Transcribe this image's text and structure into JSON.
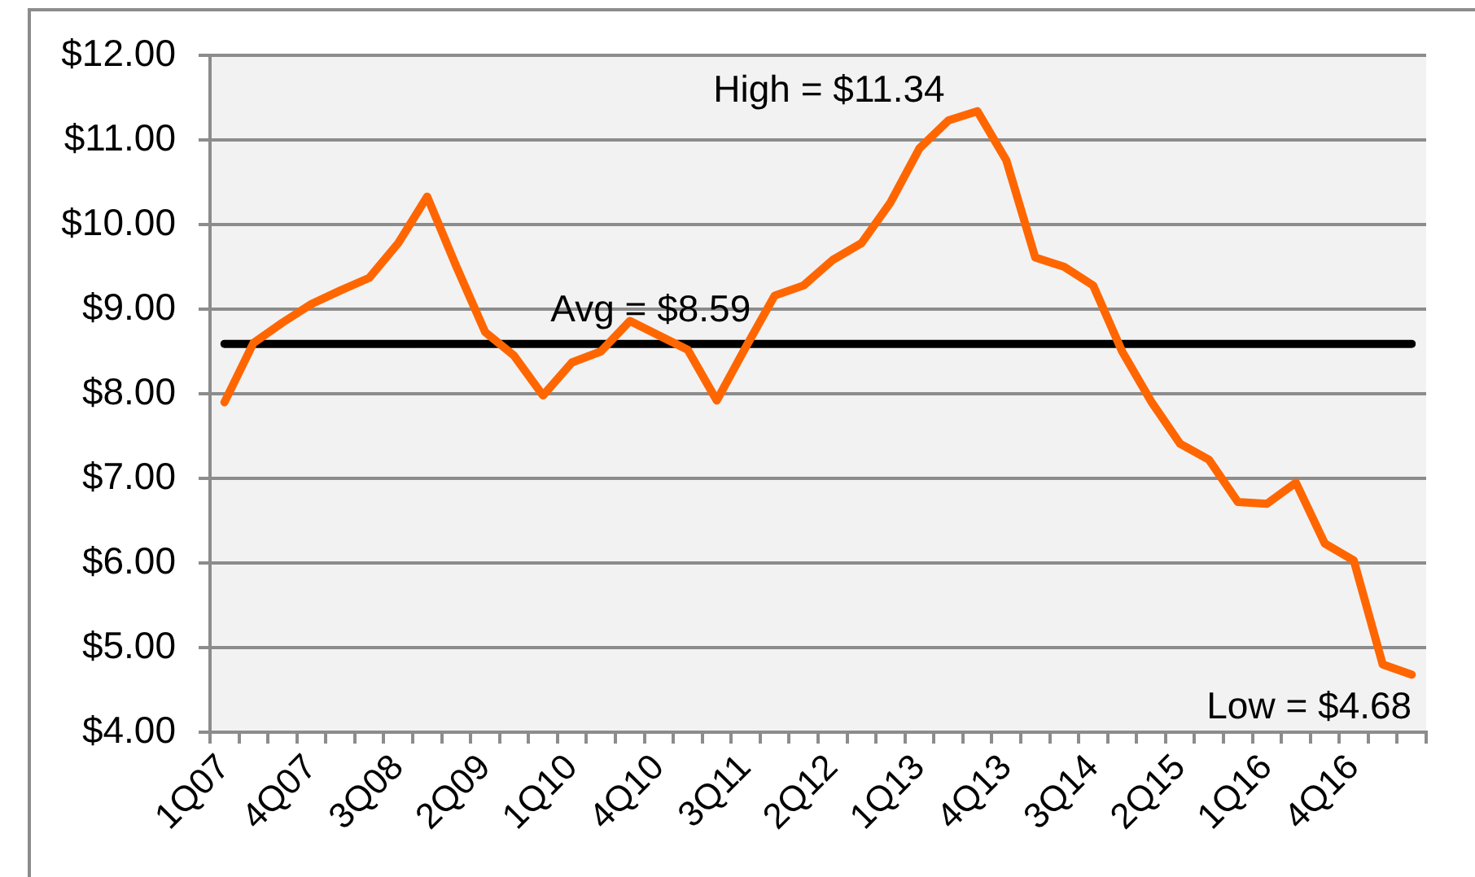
{
  "chart_data": {
    "type": "line",
    "categories": [
      "1Q07",
      null,
      null,
      "4Q07",
      null,
      null,
      "3Q08",
      null,
      null,
      "2Q09",
      null,
      null,
      "1Q10",
      null,
      null,
      "4Q10",
      null,
      null,
      "3Q11",
      null,
      null,
      "2Q12",
      null,
      null,
      "1Q13",
      null,
      null,
      "4Q13",
      null,
      null,
      "3Q14",
      null,
      null,
      "2Q15",
      null,
      null,
      "1Q16",
      null,
      null,
      "4Q16",
      null,
      null
    ],
    "series": [
      {
        "color": "#ff6600",
        "values": [
          7.9,
          8.6,
          8.84,
          9.06,
          9.22,
          9.37,
          9.78,
          10.33,
          9.51,
          8.73,
          8.45,
          7.98,
          8.37,
          8.5,
          8.86,
          8.69,
          8.52,
          7.92,
          8.55,
          9.16,
          9.28,
          9.58,
          9.78,
          10.26,
          10.9,
          11.23,
          11.34,
          10.76,
          9.61,
          9.5,
          9.28,
          8.5,
          7.91,
          7.41,
          7.22,
          6.72,
          6.7,
          6.95,
          6.23,
          6.03,
          4.8,
          4.68
        ]
      }
    ],
    "ylim": [
      4,
      12
    ],
    "yticks": [
      {
        "value": 4,
        "label": "$4.00"
      },
      {
        "value": 5,
        "label": "$5.00"
      },
      {
        "value": 6,
        "label": "$6.00"
      },
      {
        "value": 7,
        "label": "$7.00"
      },
      {
        "value": 8,
        "label": "$8.00"
      },
      {
        "value": 9,
        "label": "$9.00"
      },
      {
        "value": 10,
        "label": "$10.00"
      },
      {
        "value": 11,
        "label": "$11.00"
      },
      {
        "value": 12,
        "label": "$12.00"
      }
    ],
    "grid": "y",
    "ref_lines": [
      {
        "axis": "y",
        "value": 8.59,
        "label": "Avg = $8.59",
        "color": "#000000"
      }
    ],
    "annotations": [
      "High = $11.34",
      "Low = $4.68"
    ]
  }
}
